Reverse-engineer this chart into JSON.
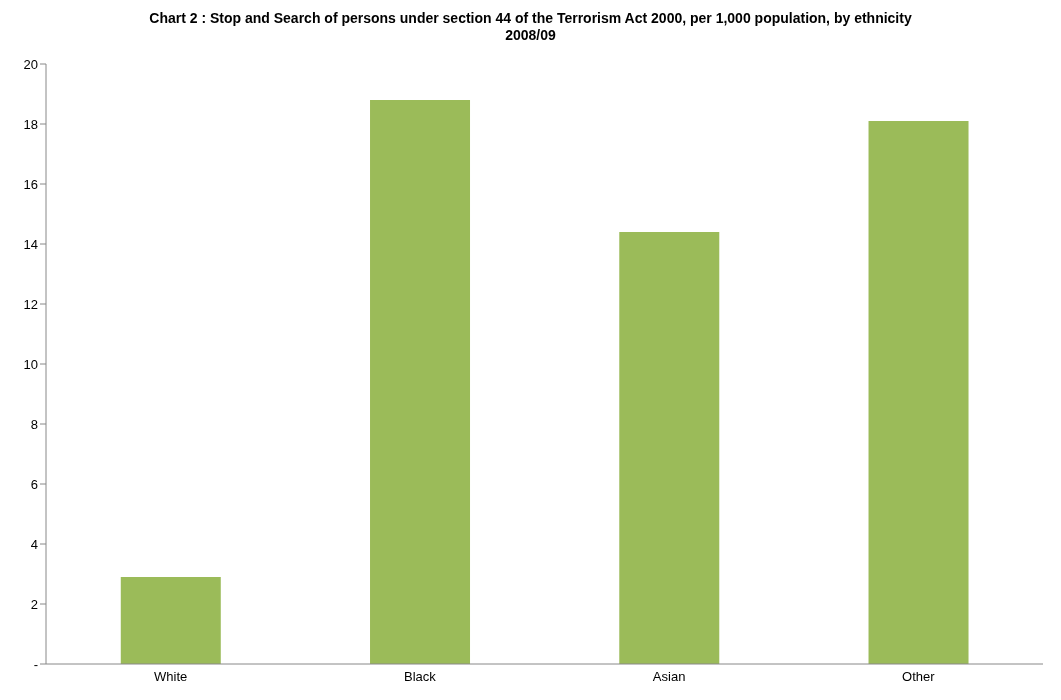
{
  "chart_data": {
    "type": "bar",
    "title": "Chart 2 : Stop and Search of persons under section 44 of the Terrorism Act 2000, per 1,000 population, by ethnicity 2008/09",
    "categories": [
      "White",
      "Black",
      "Asian",
      "Other"
    ],
    "values": [
      2.9,
      18.8,
      14.4,
      18.1
    ],
    "color": "#9bbb59",
    "ylim": [
      0,
      20
    ],
    "yticks": [
      {
        "value": 0,
        "label": "-"
      },
      2,
      4,
      6,
      8,
      10,
      12,
      14,
      16,
      18,
      20
    ],
    "grid": false,
    "legend": false
  }
}
